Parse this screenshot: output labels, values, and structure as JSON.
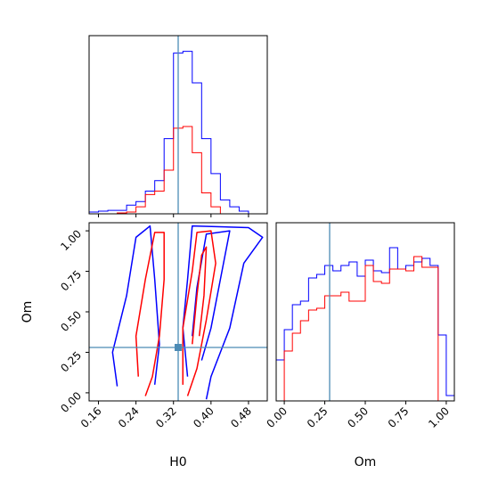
{
  "chart_data": {
    "type": "corner",
    "parameters": [
      "H0",
      "Om"
    ],
    "truth": {
      "H0": 0.33,
      "Om": 0.28
    },
    "truth_color": "#4c8bb5",
    "series_colors": [
      "#0000ff",
      "#ff0000"
    ],
    "ranges": {
      "H0": [
        0.14,
        0.52
      ],
      "Om": [
        -0.05,
        1.05
      ]
    },
    "ticks": {
      "H0": [
        0.16,
        0.24,
        0.32,
        0.4,
        0.48
      ],
      "H0_labels": [
        "0.16",
        "0.24",
        "0.32",
        "0.40",
        "0.48"
      ],
      "Om": [
        0.0,
        0.25,
        0.5,
        0.75,
        1.0
      ],
      "Om_labels": [
        "0.00",
        "0.25",
        "0.50",
        "0.75",
        "1.00"
      ]
    },
    "xlabels": [
      "H0",
      "Om"
    ],
    "ylabel": "Om",
    "hist_H0": {
      "bin_edges": [
        0.14,
        0.16,
        0.18,
        0.2,
        0.22,
        0.24,
        0.26,
        0.28,
        0.3,
        0.32,
        0.34,
        0.36,
        0.38,
        0.4,
        0.42,
        0.44,
        0.46,
        0.48,
        0.5,
        0.52
      ],
      "blue": [
        0.01,
        0.015,
        0.02,
        0.02,
        0.05,
        0.07,
        0.13,
        0.19,
        0.43,
        0.92,
        0.93,
        0.75,
        0.43,
        0.23,
        0.08,
        0.04,
        0.015,
        0.0,
        0.0
      ],
      "red": [
        0.0,
        0.0,
        0.0,
        0.005,
        0.01,
        0.04,
        0.11,
        0.13,
        0.25,
        0.49,
        0.5,
        0.35,
        0.12,
        0.04,
        0.0,
        0.0,
        0.0,
        0.0,
        0.0
      ],
      "ymax": 1.02
    },
    "hist_Om": {
      "bin_edges": [
        -0.05,
        0.0,
        0.05,
        0.1,
        0.15,
        0.2,
        0.25,
        0.3,
        0.35,
        0.4,
        0.45,
        0.5,
        0.55,
        0.6,
        0.65,
        0.7,
        0.75,
        0.8,
        0.85,
        0.9,
        0.95,
        1.0,
        1.05
      ],
      "blue": [
        0.23,
        0.4,
        0.54,
        0.56,
        0.69,
        0.71,
        0.76,
        0.73,
        0.76,
        0.78,
        0.7,
        0.79,
        0.73,
        0.72,
        0.86,
        0.74,
        0.76,
        0.78,
        0.8,
        0.76,
        0.37,
        0.03
      ],
      "red": [
        0.0,
        0.28,
        0.38,
        0.45,
        0.51,
        0.52,
        0.59,
        0.59,
        0.61,
        0.56,
        0.56,
        0.76,
        0.67,
        0.66,
        0.74,
        0.74,
        0.73,
        0.81,
        0.75,
        0.75,
        0.0,
        0.0
      ],
      "ymax": 1.0
    },
    "contours_2d": [
      {
        "color": "#0000ff",
        "points": [
          [
            0.2,
            0.04
          ],
          [
            0.19,
            0.25
          ],
          [
            0.22,
            0.6
          ],
          [
            0.24,
            0.96
          ],
          [
            0.27,
            1.03
          ],
          [
            0.28,
            0.7
          ],
          [
            0.29,
            0.3
          ],
          [
            0.28,
            0.05
          ]
        ]
      },
      {
        "color": "#0000ff",
        "points": [
          [
            0.35,
            0.1
          ],
          [
            0.34,
            0.4
          ],
          [
            0.35,
            0.7
          ],
          [
            0.36,
            1.03
          ],
          [
            0.48,
            1.02
          ],
          [
            0.51,
            0.96
          ],
          [
            0.47,
            0.8
          ],
          [
            0.44,
            0.4
          ],
          [
            0.4,
            0.1
          ],
          [
            0.39,
            -0.04
          ]
        ]
      },
      {
        "color": "#0000ff",
        "points": [
          [
            0.36,
            0.35
          ],
          [
            0.37,
            0.65
          ],
          [
            0.39,
            0.98
          ],
          [
            0.44,
            1.0
          ],
          [
            0.42,
            0.7
          ],
          [
            0.4,
            0.4
          ],
          [
            0.38,
            0.2
          ]
        ]
      },
      {
        "color": "#ff0000",
        "points": [
          [
            0.245,
            0.1
          ],
          [
            0.24,
            0.35
          ],
          [
            0.26,
            0.7
          ],
          [
            0.28,
            0.99
          ],
          [
            0.3,
            0.99
          ],
          [
            0.3,
            0.7
          ],
          [
            0.29,
            0.35
          ],
          [
            0.275,
            0.1
          ],
          [
            0.26,
            -0.02
          ]
        ]
      },
      {
        "color": "#ff0000",
        "points": [
          [
            0.34,
            0.05
          ],
          [
            0.34,
            0.4
          ],
          [
            0.36,
            0.75
          ],
          [
            0.37,
            0.99
          ],
          [
            0.4,
            1.0
          ],
          [
            0.41,
            0.8
          ],
          [
            0.39,
            0.45
          ],
          [
            0.37,
            0.15
          ],
          [
            0.35,
            -0.02
          ]
        ]
      },
      {
        "color": "#ff0000",
        "points": [
          [
            0.36,
            0.3
          ],
          [
            0.37,
            0.6
          ],
          [
            0.38,
            0.85
          ],
          [
            0.39,
            0.9
          ],
          [
            0.385,
            0.6
          ],
          [
            0.375,
            0.35
          ]
        ]
      }
    ]
  }
}
